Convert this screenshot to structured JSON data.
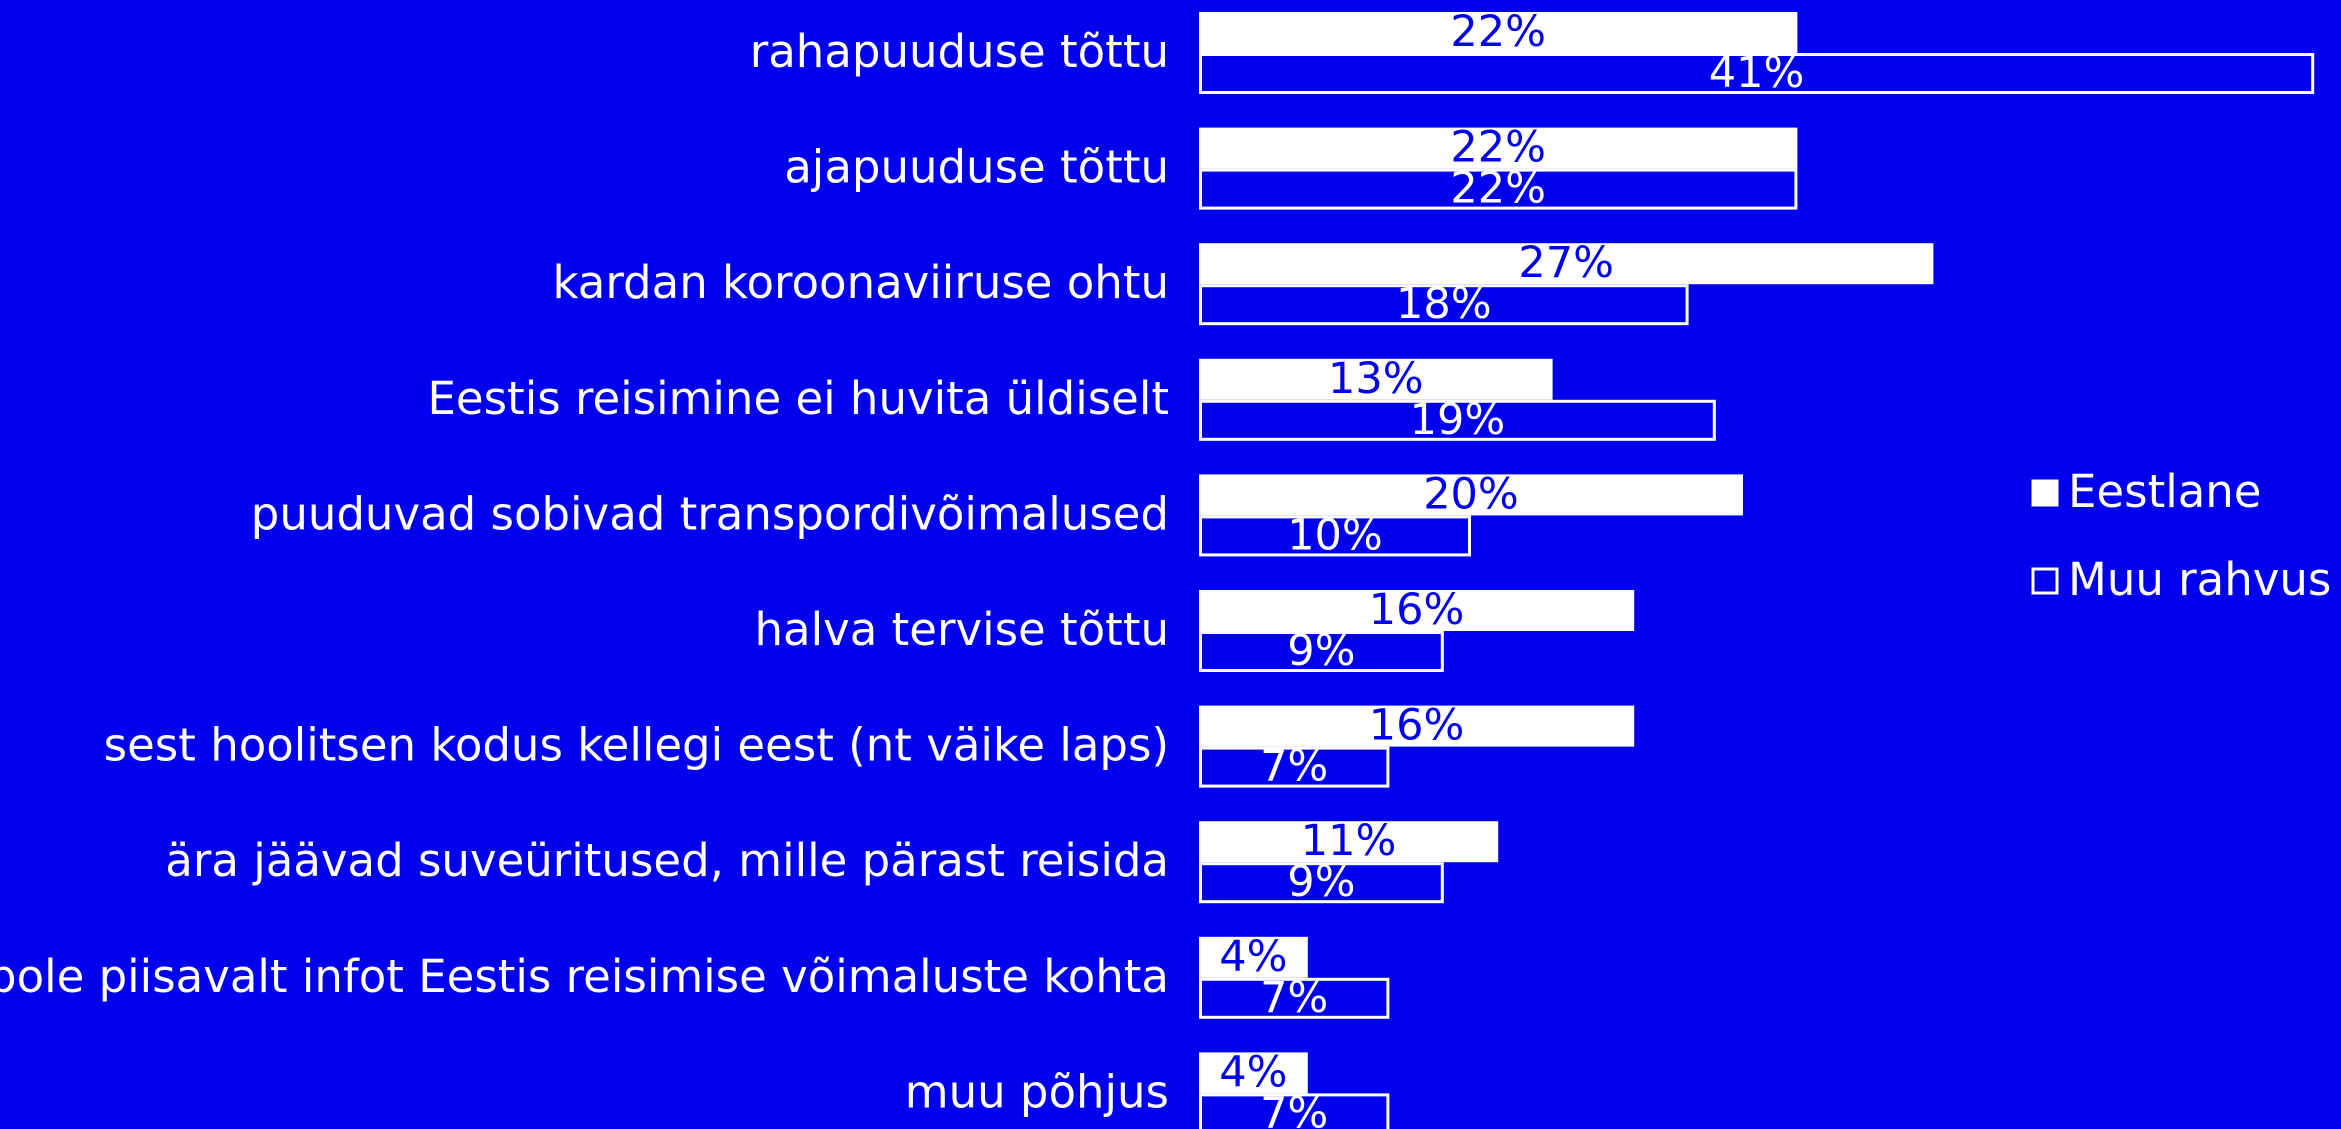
{
  "chart_data": {
    "type": "hbar",
    "categories": [
      "rahapuuduse tõttu",
      "ajapuuduse tõttu",
      "kardan koroonaviiruse ohtu",
      "Eestis reisimine ei huvita üldiselt",
      "puuduvad sobivad transpordivõimalused",
      "halva tervise tõttu",
      "sest hoolitsen kodus kellegi eest (nt väike laps)",
      "ära jäävad suveüritused, mille pärast reisida",
      "pole piisavalt infot Eestis reisimise võimaluste kohta",
      "muu põhjus"
    ],
    "series": [
      {
        "name": "Eestlane",
        "color": "#ffffff",
        "fill": true,
        "values": [
          22,
          22,
          27,
          13,
          20,
          16,
          16,
          11,
          4,
          4
        ],
        "value_labels": [
          "22%",
          "22%",
          "27%",
          "13%",
          "20%",
          "16%",
          "16%",
          "11%",
          "4%",
          "4%"
        ]
      },
      {
        "name": "Muu rahvus",
        "color": "#ffffff",
        "fill": false,
        "values": [
          41,
          22,
          18,
          19,
          10,
          9,
          7,
          9,
          7,
          7
        ],
        "value_labels": [
          "41%",
          "22%",
          "18%",
          "19%",
          "10%",
          "9%",
          "7%",
          "9%",
          "7%",
          "7%"
        ]
      }
    ],
    "legend": "right"
  }
}
